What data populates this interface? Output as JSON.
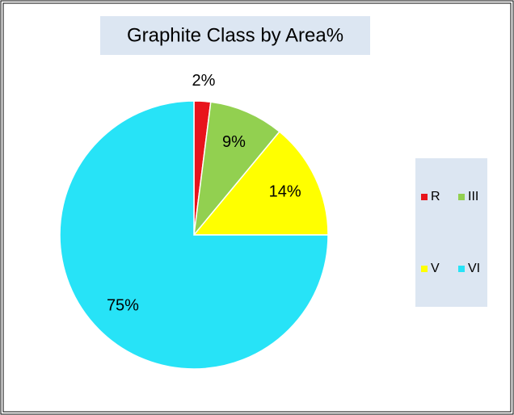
{
  "chart_data": {
    "type": "pie",
    "title": "Graphite Class by Area%",
    "categories": [
      "R",
      "III",
      "V",
      "VI"
    ],
    "values": [
      2,
      9,
      14,
      75
    ],
    "value_labels": [
      "2%",
      "9%",
      "14%",
      "75%"
    ],
    "colors": [
      "#e8141c",
      "#92d050",
      "#ffff00",
      "#27e3f7"
    ],
    "legend": "right"
  }
}
